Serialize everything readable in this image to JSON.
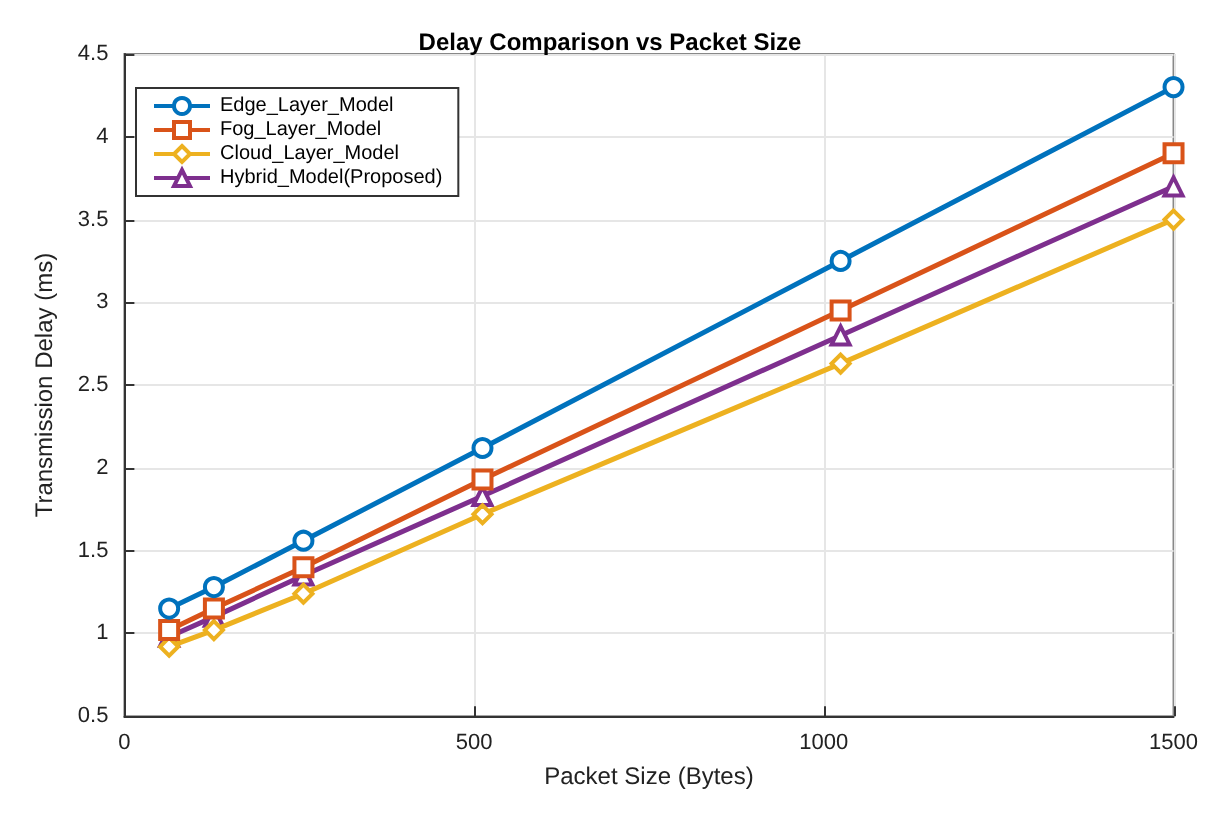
{
  "chart_data": {
    "type": "line",
    "title": "Delay Comparison vs Packet Size",
    "xlabel": "Packet Size (Bytes)",
    "ylabel": "Transmission Delay (ms)",
    "x": [
      64,
      128,
      256,
      512,
      1024,
      1500
    ],
    "series": [
      {
        "name": "Edge_Layer_Model",
        "color": "#0072bd",
        "marker": "circle",
        "values": [
          1.15,
          1.28,
          1.56,
          2.12,
          3.25,
          4.3
        ]
      },
      {
        "name": "Fog_Layer_Model",
        "color": "#d95319",
        "marker": "square",
        "values": [
          1.02,
          1.15,
          1.4,
          1.93,
          2.95,
          3.9
        ]
      },
      {
        "name": "Cloud_Layer_Model",
        "color": "#edb120",
        "marker": "diamond",
        "values": [
          0.92,
          1.02,
          1.24,
          1.72,
          2.63,
          3.5
        ]
      },
      {
        "name": "Hybrid_Model(Proposed)",
        "color": "#7e2f8e",
        "marker": "triangle",
        "values": [
          0.98,
          1.1,
          1.35,
          1.83,
          2.8,
          3.7
        ]
      }
    ],
    "xlim": [
      0,
      1500
    ],
    "xticks": [
      0,
      500,
      1000,
      1500
    ],
    "ylim": [
      0.5,
      4.5
    ],
    "yticks": [
      0.5,
      1,
      1.5,
      2,
      2.5,
      3,
      3.5,
      4,
      4.5
    ],
    "grid": true,
    "legend": "top left",
    "line_style": "solid"
  }
}
